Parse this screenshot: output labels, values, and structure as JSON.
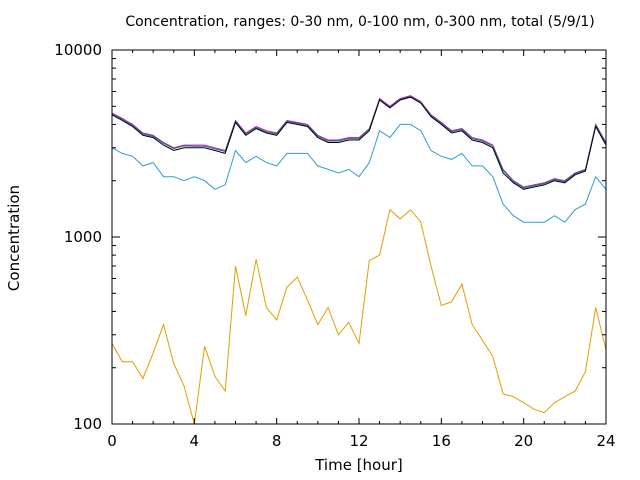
{
  "chart_data": {
    "type": "line",
    "title": "Concentration, ranges: 0-30 nm, 0-100 nm, 0-300 nm, total (5/9/1)",
    "xlabel": "Time [hour]",
    "ylabel": "Concentration",
    "xlim": [
      0,
      24
    ],
    "ylim": [
      100,
      10000
    ],
    "yscale": "log",
    "xticks": [
      "0",
      "4",
      "8",
      "12",
      "16",
      "20",
      "24"
    ],
    "yticks": [
      "100",
      "1000",
      "10000"
    ],
    "grid": false,
    "legend": "none",
    "x": [
      0,
      0.5,
      1,
      1.5,
      2,
      2.5,
      3,
      3.5,
      4,
      4.5,
      5,
      5.5,
      6,
      6.5,
      7,
      7.5,
      8,
      8.5,
      9,
      9.5,
      10,
      10.5,
      11,
      11.5,
      12,
      12.5,
      13,
      13.5,
      14,
      14.5,
      15,
      15.5,
      16,
      16.5,
      17,
      17.5,
      18,
      18.5,
      19,
      19.5,
      20,
      20.5,
      21,
      21.5,
      22,
      22.5,
      23,
      23.5,
      24
    ],
    "series": [
      {
        "color": "#e0a000",
        "values": [
          270,
          215,
          215,
          175,
          240,
          340,
          210,
          160,
          100,
          260,
          180,
          150,
          700,
          380,
          760,
          420,
          360,
          540,
          610,
          460,
          340,
          420,
          300,
          350,
          270,
          750,
          800,
          1400,
          1250,
          1400,
          1200,
          700,
          430,
          450,
          560,
          340,
          280,
          230,
          145,
          140,
          130,
          120,
          115,
          130,
          140,
          150,
          190,
          420,
          250
        ]
      },
      {
        "color": "#2f9fd0",
        "values": [
          3000,
          2800,
          2700,
          2400,
          2500,
          2100,
          2100,
          2000,
          2100,
          2000,
          1800,
          1900,
          2900,
          2500,
          2700,
          2500,
          2400,
          2800,
          2800,
          2800,
          2400,
          2300,
          2200,
          2300,
          2100,
          2500,
          3700,
          3400,
          4000,
          4000,
          3700,
          2900,
          2700,
          2600,
          2800,
          2400,
          2400,
          2100,
          1500,
          1300,
          1200,
          1200,
          1200,
          1300,
          1200,
          1400,
          1500,
          2100,
          1800
        ]
      },
      {
        "color": "#e000e0",
        "values": [
          4600,
          4300,
          4000,
          3600,
          3500,
          3200,
          3000,
          3100,
          3100,
          3100,
          3000,
          2900,
          4200,
          3600,
          3900,
          3700,
          3600,
          4200,
          4100,
          4000,
          3500,
          3300,
          3300,
          3400,
          3400,
          3800,
          5500,
          5000,
          5500,
          5700,
          5300,
          4500,
          4100,
          3700,
          3800,
          3400,
          3300,
          3100,
          2300,
          2000,
          1850,
          1900,
          1950,
          2050,
          2000,
          2200,
          2300,
          4000,
          3200
        ]
      },
      {
        "color": "#008a60",
        "values": [
          4550,
          4250,
          3950,
          3560,
          3450,
          3170,
          2970,
          3070,
          3060,
          3060,
          2960,
          2870,
          4150,
          3560,
          3850,
          3650,
          3560,
          4150,
          4050,
          3950,
          3460,
          3260,
          3260,
          3360,
          3360,
          3760,
          5440,
          4950,
          5440,
          5640,
          5240,
          4450,
          4050,
          3660,
          3760,
          3360,
          3260,
          3060,
          2270,
          1980,
          1830,
          1880,
          1930,
          2030,
          1980,
          2180,
          2280,
          3960,
          3160
        ]
      },
      {
        "color": "#000000",
        "values": [
          4500,
          4200,
          3900,
          3500,
          3400,
          3100,
          2900,
          3000,
          3000,
          3000,
          2900,
          2800,
          4100,
          3500,
          3800,
          3600,
          3500,
          4100,
          4000,
          3900,
          3400,
          3200,
          3200,
          3300,
          3300,
          3700,
          5400,
          4900,
          5400,
          5600,
          5200,
          4400,
          4000,
          3600,
          3700,
          3300,
          3200,
          3000,
          2200,
          1950,
          1800,
          1850,
          1900,
          2000,
          1950,
          2150,
          2250,
          3900,
          3100
        ]
      }
    ]
  }
}
